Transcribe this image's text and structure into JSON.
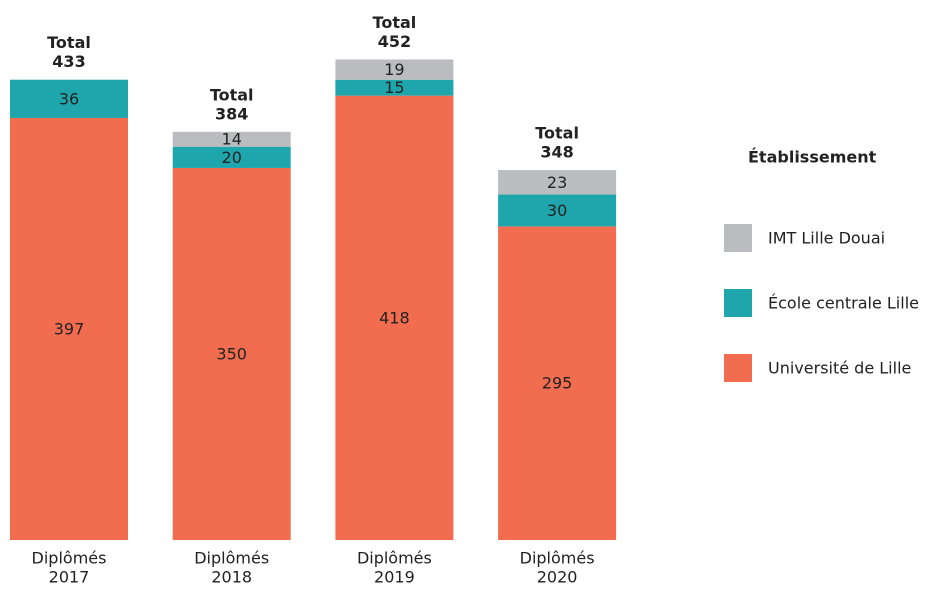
{
  "chart_data": {
    "type": "stacked_bar",
    "categories": [
      [
        "Diplômés",
        "2017"
      ],
      [
        "Diplômés",
        "2018"
      ],
      [
        "Diplômés",
        "2019"
      ],
      [
        "Diplômés",
        "2020"
      ]
    ],
    "series": [
      {
        "name": "Université de Lille",
        "color": "#f26d50",
        "values": [
          397,
          350,
          418,
          295
        ]
      },
      {
        "name": "École centrale Lille",
        "color": "#1fa6ad",
        "values": [
          36,
          20,
          15,
          30
        ]
      },
      {
        "name": "IMT Lille Douai",
        "color": "#bbbcc0",
        "values": [
          null,
          14,
          19,
          23
        ]
      }
    ],
    "total_label": "Total",
    "totals": [
      433,
      384,
      452,
      348
    ],
    "legend_title": "Établissement",
    "legend": "right"
  }
}
